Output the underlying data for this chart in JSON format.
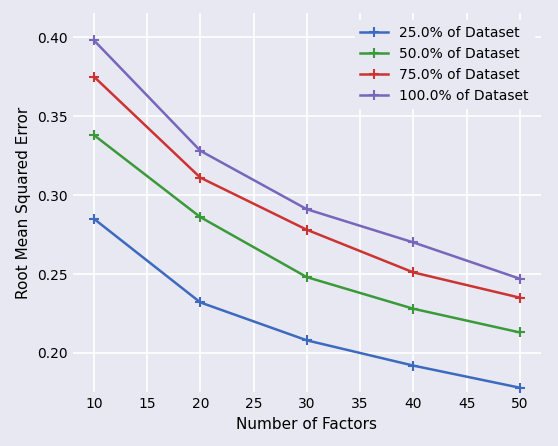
{
  "x": [
    10,
    20,
    30,
    40,
    50
  ],
  "series": [
    {
      "label": "25.0% of Dataset",
      "color": "#3b6abf",
      "values": [
        0.285,
        0.232,
        0.208,
        0.192,
        0.178
      ]
    },
    {
      "label": "50.0% of Dataset",
      "color": "#3a9a3a",
      "values": [
        0.338,
        0.286,
        0.248,
        0.228,
        0.213
      ]
    },
    {
      "label": "75.0% of Dataset",
      "color": "#cc3333",
      "values": [
        0.375,
        0.311,
        0.278,
        0.251,
        0.235
      ]
    },
    {
      "label": "100.0% of Dataset",
      "color": "#7766bb",
      "values": [
        0.398,
        0.328,
        0.291,
        0.27,
        0.247
      ]
    }
  ],
  "xlabel": "Number of Factors",
  "ylabel": "Root Mean Squared Error",
  "xlim": [
    8,
    52
  ],
  "ylim": [
    0.175,
    0.415
  ],
  "xticks": [
    10,
    15,
    20,
    25,
    30,
    35,
    40,
    45,
    50
  ],
  "yticks": [
    0.2,
    0.25,
    0.3,
    0.35,
    0.4
  ],
  "background_color": "#e8e8f2",
  "grid_color": "#ffffff",
  "marker": "+",
  "markersize": 7,
  "markeredgewidth": 1.5,
  "linewidth": 1.8,
  "xlabel_fontsize": 11,
  "ylabel_fontsize": 11,
  "tick_fontsize": 10,
  "legend_fontsize": 10
}
